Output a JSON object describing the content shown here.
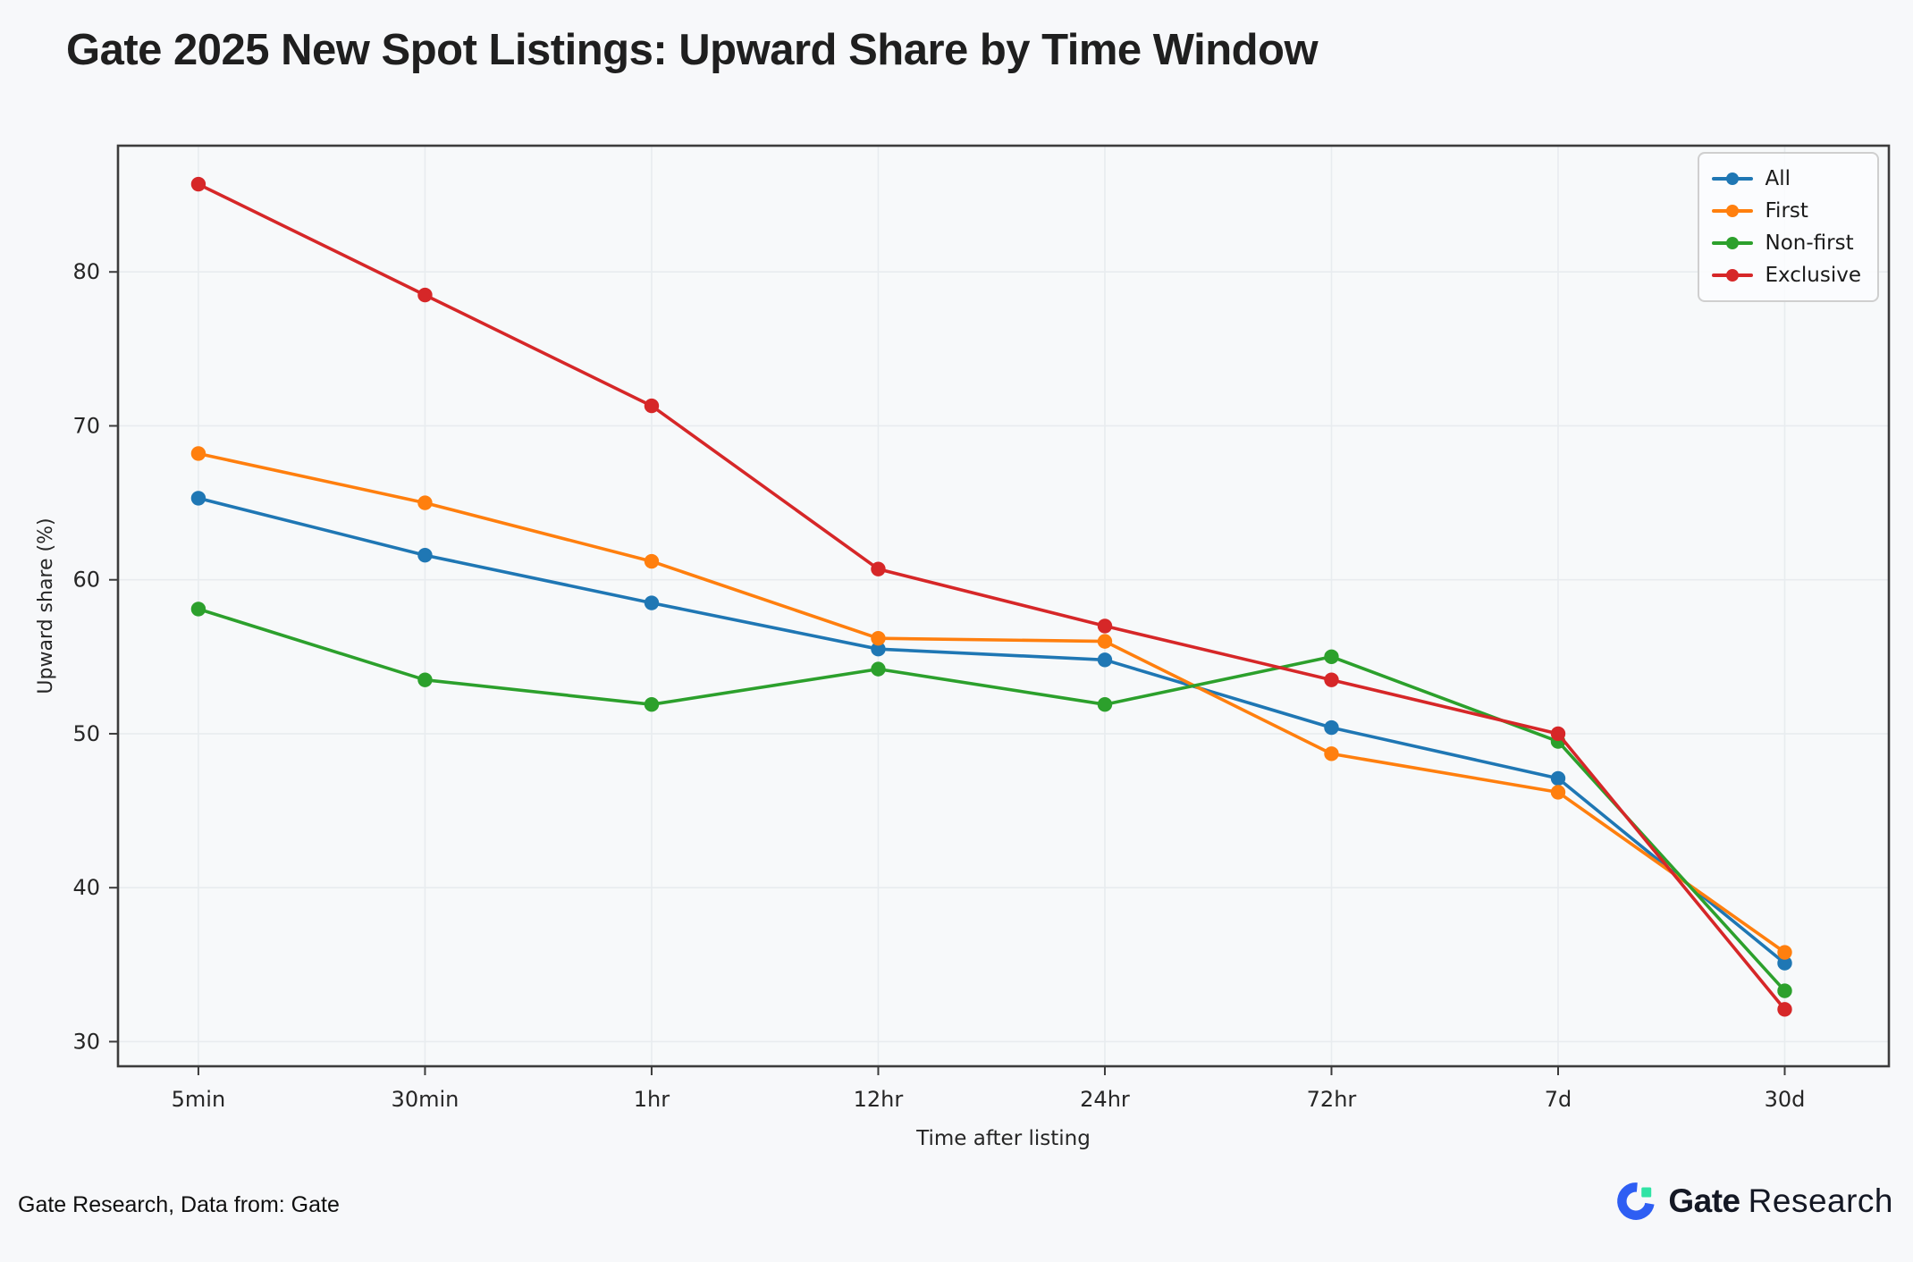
{
  "title": "Gate 2025 New Spot Listings: Upward Share by Time Window",
  "footer": {
    "source_note": "Gate Research, Data from: Gate",
    "brand_bold": "Gate",
    "brand_regular": "Research"
  },
  "colors": {
    "background": "#f7f8fa",
    "plot_bg": "#f7f9fa",
    "grid": "#e8ecef",
    "spine": "#3c3c3c",
    "tick_text": "#262626",
    "legend_border": "#cfcfcf",
    "logo_blue": "#2e5ef3",
    "logo_green": "#31e3a5",
    "brand_text": "#141824"
  },
  "chart_data": {
    "type": "line",
    "title": "Gate 2025 New Spot Listings: Upward Share by Time Window",
    "xlabel": "Time after listing",
    "ylabel": "Upward share (%)",
    "categories": [
      "5min",
      "30min",
      "1hr",
      "12hr",
      "24hr",
      "72hr",
      "7d",
      "30d"
    ],
    "yticks": [
      30,
      40,
      50,
      60,
      70,
      80
    ],
    "ylim": [
      28.4,
      88.2
    ],
    "grid": true,
    "legend_position": "upper right",
    "series": [
      {
        "name": "All",
        "color": "#1f77b4",
        "values": [
          65.3,
          61.6,
          58.5,
          55.5,
          54.8,
          50.4,
          47.1,
          35.1
        ]
      },
      {
        "name": "First",
        "color": "#ff7f0e",
        "values": [
          68.2,
          65.0,
          61.2,
          56.2,
          56.0,
          48.7,
          46.2,
          35.8
        ]
      },
      {
        "name": "Non-first",
        "color": "#2ca02c",
        "values": [
          58.1,
          53.5,
          51.9,
          54.2,
          51.9,
          55.0,
          49.5,
          33.3
        ]
      },
      {
        "name": "Exclusive",
        "color": "#d62728",
        "values": [
          85.7,
          78.5,
          71.3,
          60.7,
          57.0,
          53.5,
          50.0,
          32.1
        ]
      }
    ]
  }
}
